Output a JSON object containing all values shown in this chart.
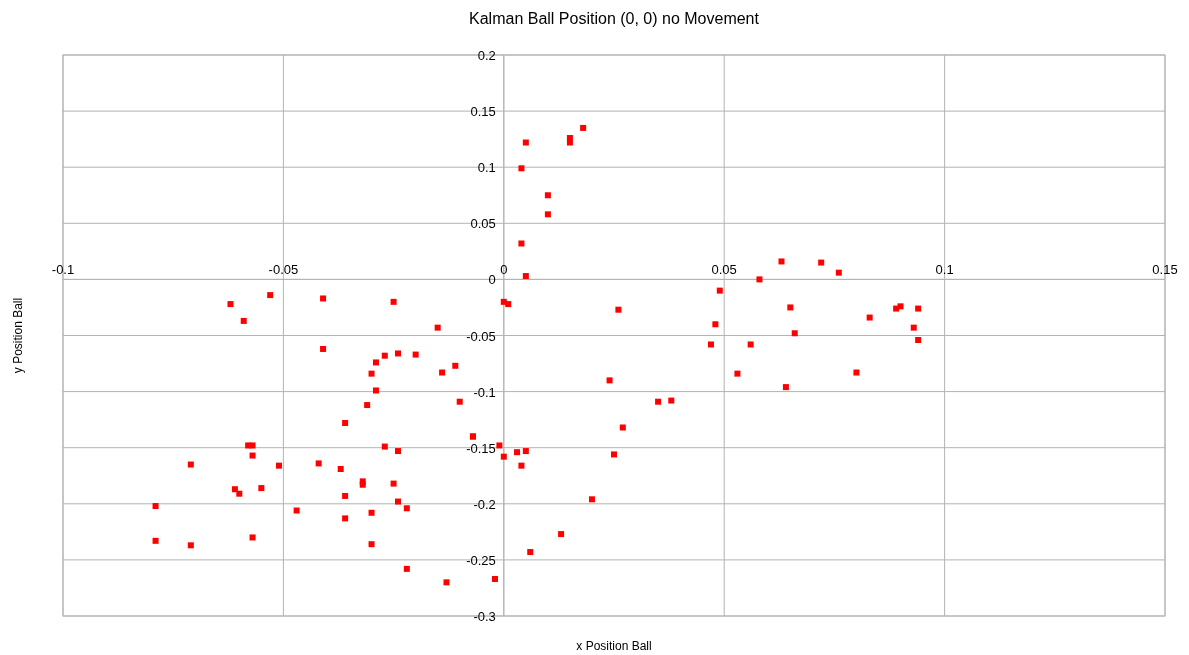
{
  "chart_data": {
    "type": "scatter",
    "title": "Kalman Ball Position  (0, 0) no Movement",
    "xlabel": "x Position Ball",
    "ylabel": "y  Position Ball",
    "xlim": [
      -0.1,
      0.15
    ],
    "ylim": [
      -0.3,
      0.2
    ],
    "xticks": [
      -0.1,
      -0.05,
      0,
      0.05,
      0.1,
      0.15
    ],
    "yticks": [
      -0.3,
      -0.25,
      -0.2,
      -0.15,
      -0.1,
      -0.05,
      0,
      0.05,
      0.1,
      0.15,
      0.2
    ],
    "grid": true,
    "marker": "square",
    "color": "#ff0000",
    "x": [
      -0.062,
      -0.059,
      -0.053,
      -0.041,
      -0.041,
      -0.025,
      -0.015,
      -0.014,
      -0.011,
      -0.02,
      -0.024,
      -0.027,
      -0.029,
      -0.03,
      -0.029,
      -0.031,
      -0.036,
      -0.01,
      -0.007,
      -0.007,
      -0.001,
      0.0,
      0.003,
      0.005,
      0.004,
      -0.027,
      -0.024,
      -0.037,
      -0.032,
      -0.032,
      -0.025,
      -0.042,
      -0.036,
      -0.051,
      -0.047,
      -0.036,
      -0.03,
      -0.024,
      -0.022,
      -0.03,
      -0.022,
      -0.013,
      -0.002,
      0.006,
      0.013,
      0.02,
      0.025,
      0.027,
      0.024,
      0.026,
      0.035,
      0.038,
      -0.058,
      -0.057,
      -0.057,
      -0.071,
      -0.061,
      -0.06,
      -0.055,
      -0.079,
      -0.079,
      -0.071,
      -0.057,
      0.0,
      0.001,
      0.004,
      0.005,
      0.01,
      0.01,
      0.004,
      0.005,
      0.015,
      0.015,
      0.018,
      0.048,
      0.047,
      0.049,
      0.056,
      0.053,
      0.058,
      0.063,
      0.065,
      0.066,
      0.064,
      0.072,
      0.076,
      0.08,
      0.083,
      0.089,
      0.09,
      0.093,
      0.094,
      0.094
    ],
    "values": [
      -0.022,
      -0.037,
      -0.014,
      -0.017,
      -0.062,
      -0.02,
      -0.043,
      -0.083,
      -0.077,
      -0.067,
      -0.066,
      -0.068,
      -0.074,
      -0.084,
      -0.099,
      -0.112,
      -0.128,
      -0.109,
      -0.14,
      -0.14,
      -0.148,
      -0.158,
      -0.154,
      -0.153,
      -0.166,
      -0.149,
      -0.153,
      -0.169,
      -0.18,
      -0.183,
      -0.182,
      -0.164,
      -0.193,
      -0.166,
      -0.206,
      -0.213,
      -0.208,
      -0.198,
      -0.204,
      -0.236,
      -0.258,
      -0.27,
      -0.267,
      -0.243,
      -0.227,
      -0.196,
      -0.156,
      -0.132,
      -0.09,
      -0.027,
      -0.109,
      -0.108,
      -0.148,
      -0.148,
      -0.157,
      -0.165,
      -0.187,
      -0.191,
      -0.186,
      -0.202,
      -0.233,
      -0.237,
      -0.23,
      -0.02,
      -0.022,
      0.099,
      0.122,
      0.075,
      0.058,
      0.032,
      0.003,
      0.126,
      0.122,
      0.135,
      -0.04,
      -0.058,
      -0.01,
      -0.058,
      -0.084,
      0.0,
      0.016,
      -0.025,
      -0.048,
      -0.096,
      0.015,
      0.006,
      -0.083,
      -0.034,
      -0.026,
      -0.024,
      -0.043,
      -0.026,
      -0.054
    ]
  }
}
